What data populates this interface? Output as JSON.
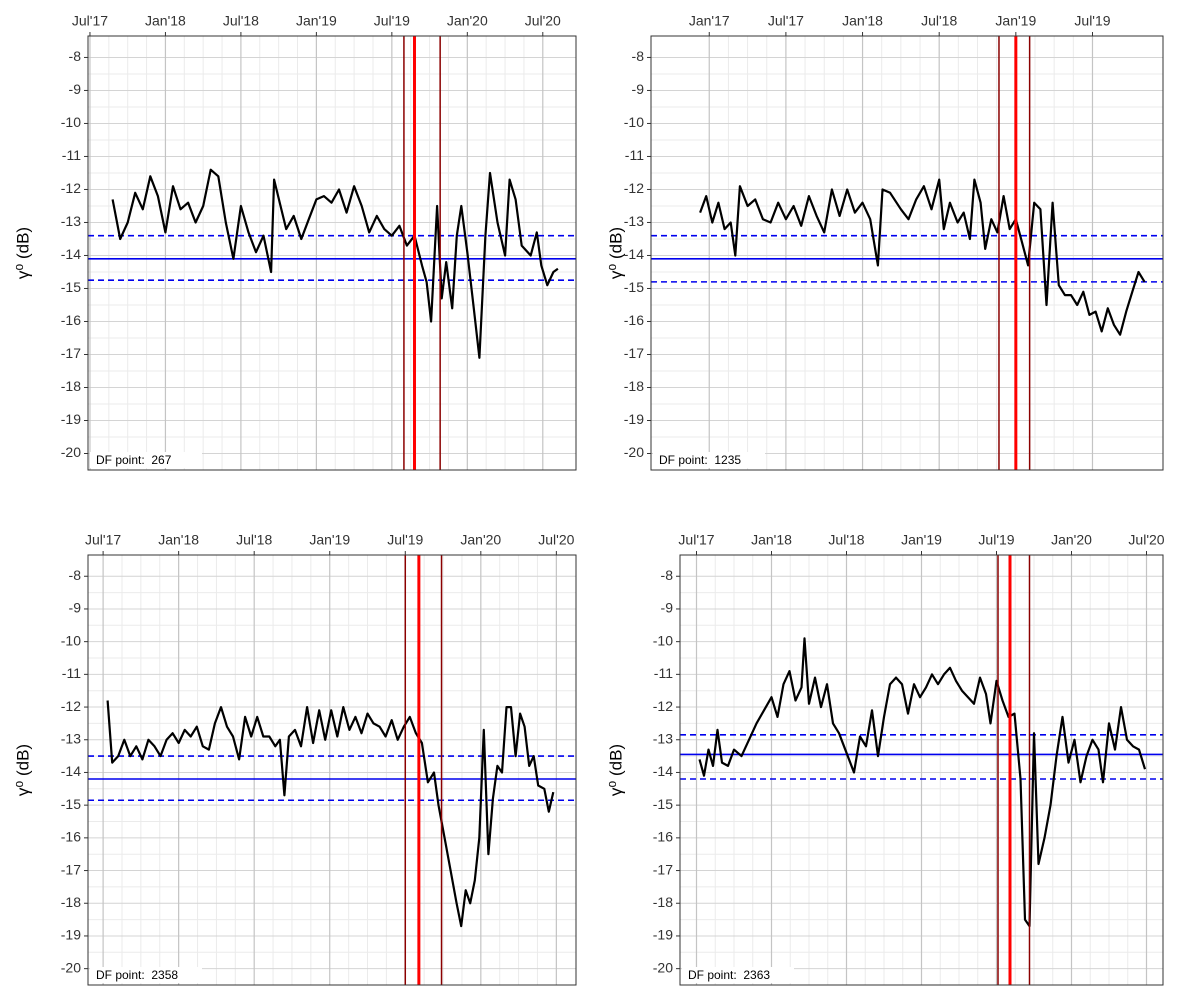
{
  "chart_data": [
    {
      "type": "line",
      "y_label": "γ⁰ (dB)",
      "annotation": "DF point:  267",
      "xlim": [
        2017.487,
        2020.72
      ],
      "ylim": [
        -20.5,
        -7.35
      ],
      "xticks": [
        {
          "value": 2017.5,
          "label": "Jul'17"
        },
        {
          "value": 2018.0,
          "label": "Jan'18"
        },
        {
          "value": 2018.5,
          "label": "Jul'18"
        },
        {
          "value": 2019.0,
          "label": "Jan'19"
        },
        {
          "value": 2019.5,
          "label": "Jul'19"
        },
        {
          "value": 2020.0,
          "label": "Jan'20"
        },
        {
          "value": 2020.5,
          "label": "Jul'20"
        }
      ],
      "yticks": [
        -8,
        -9,
        -10,
        -11,
        -12,
        -13,
        -14,
        -15,
        -16,
        -17,
        -18,
        -19,
        -20
      ],
      "grid": true,
      "hlines": [
        {
          "value": -14.1,
          "style": "solid",
          "color": "#0000ee"
        },
        {
          "value": -13.4,
          "style": "dashed",
          "color": "#0000ee"
        },
        {
          "value": -14.75,
          "style": "dashed",
          "color": "#0000ee"
        }
      ],
      "vlines": [
        {
          "value": 2019.58,
          "weight": "normal",
          "color": "#8b0000"
        },
        {
          "value": 2019.65,
          "weight": "bold",
          "color": "#ff0000"
        },
        {
          "value": 2019.82,
          "weight": "normal",
          "color": "#8b0000"
        }
      ],
      "color": "#000000",
      "x": [
        2017.65,
        2017.7,
        2017.75,
        2017.8,
        2017.85,
        2017.9,
        2017.95,
        2018.0,
        2018.05,
        2018.1,
        2018.15,
        2018.2,
        2018.25,
        2018.3,
        2018.35,
        2018.4,
        2018.45,
        2018.5,
        2018.55,
        2018.6,
        2018.65,
        2018.7,
        2018.72,
        2018.8,
        2018.85,
        2018.9,
        2018.95,
        2019.0,
        2019.05,
        2019.1,
        2019.15,
        2019.2,
        2019.25,
        2019.3,
        2019.35,
        2019.4,
        2019.45,
        2019.5,
        2019.55,
        2019.6,
        2019.65,
        2019.7,
        2019.73,
        2019.76,
        2019.8,
        2019.83,
        2019.86,
        2019.9,
        2019.93,
        2019.96,
        2020.0,
        2020.04,
        2020.08,
        2020.12,
        2020.15,
        2020.2,
        2020.25,
        2020.28,
        2020.32,
        2020.36,
        2020.42,
        2020.46,
        2020.49,
        2020.53,
        2020.57,
        2020.6
      ],
      "values": [
        -12.3,
        -13.5,
        -13.0,
        -12.1,
        -12.6,
        -11.6,
        -12.2,
        -13.3,
        -11.9,
        -12.6,
        -12.4,
        -13.0,
        -12.5,
        -11.4,
        -11.6,
        -13.0,
        -14.1,
        -12.5,
        -13.3,
        -13.9,
        -13.4,
        -14.5,
        -11.7,
        -13.2,
        -12.8,
        -13.5,
        -12.9,
        -12.3,
        -12.2,
        -12.4,
        -12.0,
        -12.7,
        -11.9,
        -12.5,
        -13.3,
        -12.8,
        -13.2,
        -13.4,
        -13.1,
        -13.7,
        -13.4,
        -14.3,
        -14.8,
        -16.0,
        -12.5,
        -15.3,
        -14.2,
        -15.6,
        -13.4,
        -12.5,
        -13.9,
        -15.5,
        -17.1,
        -13.4,
        -11.5,
        -13.0,
        -14.0,
        -11.7,
        -12.3,
        -13.7,
        -14.0,
        -13.3,
        -14.3,
        -14.9,
        -14.5,
        -14.4
      ]
    },
    {
      "type": "line",
      "y_label": "γ⁰ (dB)",
      "annotation": "DF point:  1235",
      "xlim": [
        2016.62,
        2019.96
      ],
      "ylim": [
        -20.5,
        -7.35
      ],
      "xticks": [
        {
          "value": 2017.0,
          "label": "Jan'17"
        },
        {
          "value": 2017.5,
          "label": "Jul'17"
        },
        {
          "value": 2018.0,
          "label": "Jan'18"
        },
        {
          "value": 2018.5,
          "label": "Jul'18"
        },
        {
          "value": 2019.0,
          "label": "Jan'19"
        },
        {
          "value": 2019.5,
          "label": "Jul'19"
        }
      ],
      "yticks": [
        -8,
        -9,
        -10,
        -11,
        -12,
        -13,
        -14,
        -15,
        -16,
        -17,
        -18,
        -19,
        -20
      ],
      "grid": true,
      "hlines": [
        {
          "value": -14.1,
          "style": "solid",
          "color": "#0000ee"
        },
        {
          "value": -13.4,
          "style": "dashed",
          "color": "#0000ee"
        },
        {
          "value": -14.8,
          "style": "dashed",
          "color": "#0000ee"
        }
      ],
      "vlines": [
        {
          "value": 2018.89,
          "weight": "normal",
          "color": "#8b0000"
        },
        {
          "value": 2019.0,
          "weight": "bold",
          "color": "#ff0000"
        },
        {
          "value": 2019.09,
          "weight": "normal",
          "color": "#8b0000"
        }
      ],
      "color": "#000000",
      "x": [
        2016.94,
        2016.98,
        2017.02,
        2017.06,
        2017.1,
        2017.14,
        2017.17,
        2017.2,
        2017.25,
        2017.3,
        2017.35,
        2017.4,
        2017.45,
        2017.5,
        2017.55,
        2017.6,
        2017.65,
        2017.7,
        2017.75,
        2017.8,
        2017.85,
        2017.9,
        2017.95,
        2018.0,
        2018.05,
        2018.1,
        2018.13,
        2018.18,
        2018.25,
        2018.3,
        2018.35,
        2018.4,
        2018.45,
        2018.5,
        2018.53,
        2018.57,
        2018.62,
        2018.66,
        2018.7,
        2018.73,
        2018.77,
        2018.8,
        2018.84,
        2018.88,
        2018.92,
        2018.96,
        2019.0,
        2019.04,
        2019.08,
        2019.12,
        2019.16,
        2019.2,
        2019.24,
        2019.28,
        2019.32,
        2019.36,
        2019.4,
        2019.44,
        2019.48,
        2019.52,
        2019.56,
        2019.6,
        2019.64,
        2019.68,
        2019.72,
        2019.76,
        2019.8,
        2019.84
      ],
      "values": [
        -12.7,
        -12.2,
        -13.0,
        -12.4,
        -13.2,
        -13.0,
        -14.0,
        -11.9,
        -12.5,
        -12.3,
        -12.9,
        -13.0,
        -12.4,
        -12.9,
        -12.5,
        -13.1,
        -12.2,
        -12.8,
        -13.3,
        -12.0,
        -12.8,
        -12.0,
        -12.7,
        -12.4,
        -12.9,
        -14.3,
        -12.0,
        -12.1,
        -12.6,
        -12.9,
        -12.3,
        -11.9,
        -12.6,
        -11.7,
        -13.2,
        -12.4,
        -13.0,
        -12.7,
        -13.5,
        -11.7,
        -12.4,
        -13.8,
        -12.9,
        -13.3,
        -12.2,
        -13.2,
        -12.9,
        -13.6,
        -14.3,
        -12.4,
        -12.6,
        -15.5,
        -12.4,
        -14.9,
        -15.2,
        -15.2,
        -15.5,
        -15.1,
        -15.8,
        -15.7,
        -16.3,
        -15.6,
        -16.1,
        -16.4,
        -15.7,
        -15.1,
        -14.5,
        -14.8
      ]
    },
    {
      "type": "line",
      "y_label": "γ⁰ (dB)",
      "annotation": "DF point:  2358",
      "xlim": [
        2017.4,
        2020.63
      ],
      "ylim": [
        -20.5,
        -7.35
      ],
      "xticks": [
        {
          "value": 2017.5,
          "label": "Jul'17"
        },
        {
          "value": 2018.0,
          "label": "Jan'18"
        },
        {
          "value": 2018.5,
          "label": "Jul'18"
        },
        {
          "value": 2019.0,
          "label": "Jan'19"
        },
        {
          "value": 2019.5,
          "label": "Jul'19"
        },
        {
          "value": 2020.0,
          "label": "Jan'20"
        },
        {
          "value": 2020.5,
          "label": "Jul'20"
        }
      ],
      "yticks": [
        -8,
        -9,
        -10,
        -11,
        -12,
        -13,
        -14,
        -15,
        -16,
        -17,
        -18,
        -19,
        -20
      ],
      "grid": true,
      "hlines": [
        {
          "value": -14.2,
          "style": "solid",
          "color": "#0000ee"
        },
        {
          "value": -13.5,
          "style": "dashed",
          "color": "#0000ee"
        },
        {
          "value": -14.85,
          "style": "dashed",
          "color": "#0000ee"
        }
      ],
      "vlines": [
        {
          "value": 2019.5,
          "weight": "normal",
          "color": "#8b0000"
        },
        {
          "value": 2019.59,
          "weight": "bold",
          "color": "#ff0000"
        },
        {
          "value": 2019.74,
          "weight": "normal",
          "color": "#8b0000"
        }
      ],
      "color": "#000000",
      "x": [
        2017.53,
        2017.56,
        2017.6,
        2017.64,
        2017.68,
        2017.72,
        2017.76,
        2017.8,
        2017.84,
        2017.88,
        2017.92,
        2017.96,
        2018.0,
        2018.04,
        2018.08,
        2018.12,
        2018.16,
        2018.2,
        2018.24,
        2018.28,
        2018.32,
        2018.36,
        2018.4,
        2018.44,
        2018.48,
        2018.52,
        2018.56,
        2018.6,
        2018.64,
        2018.67,
        2018.7,
        2018.73,
        2018.77,
        2018.81,
        2018.85,
        2018.89,
        2018.93,
        2018.97,
        2019.01,
        2019.05,
        2019.09,
        2019.13,
        2019.17,
        2019.21,
        2019.25,
        2019.29,
        2019.33,
        2019.37,
        2019.41,
        2019.45,
        2019.49,
        2019.53,
        2019.57,
        2019.61,
        2019.65,
        2019.69,
        2019.72,
        2019.76,
        2019.8,
        2019.84,
        2019.87,
        2019.9,
        2019.93,
        2019.96,
        2019.99,
        2020.02,
        2020.05,
        2020.08,
        2020.11,
        2020.14,
        2020.17,
        2020.2,
        2020.23,
        2020.26,
        2020.29,
        2020.32,
        2020.35,
        2020.38,
        2020.42,
        2020.45,
        2020.48
      ],
      "values": [
        -11.8,
        -13.7,
        -13.5,
        -13.0,
        -13.5,
        -13.2,
        -13.6,
        -13.0,
        -13.2,
        -13.5,
        -13.0,
        -12.8,
        -13.1,
        -12.7,
        -12.9,
        -12.6,
        -13.2,
        -13.3,
        -12.5,
        -12.0,
        -12.6,
        -12.9,
        -13.6,
        -12.3,
        -12.9,
        -12.3,
        -12.9,
        -12.9,
        -13.2,
        -13.0,
        -14.7,
        -12.9,
        -12.7,
        -13.2,
        -12.0,
        -13.1,
        -12.1,
        -13.0,
        -12.1,
        -12.9,
        -12.0,
        -12.7,
        -12.3,
        -12.8,
        -12.2,
        -12.5,
        -12.6,
        -12.9,
        -12.4,
        -13.0,
        -12.6,
        -12.3,
        -12.8,
        -13.1,
        -14.3,
        -14.0,
        -15.0,
        -16.0,
        -17.0,
        -18.0,
        -18.7,
        -17.6,
        -18.0,
        -17.3,
        -16.0,
        -12.7,
        -16.5,
        -14.8,
        -13.8,
        -14.0,
        -12.0,
        -12.0,
        -13.5,
        -12.2,
        -12.6,
        -13.8,
        -13.5,
        -14.4,
        -14.5,
        -15.2,
        -14.6
      ]
    },
    {
      "type": "line",
      "y_label": "γ⁰ (dB)",
      "annotation": "DF point:  2363",
      "xlim": [
        2017.39,
        2020.61
      ],
      "ylim": [
        -20.5,
        -7.35
      ],
      "xticks": [
        {
          "value": 2017.5,
          "label": "Jul'17"
        },
        {
          "value": 2018.0,
          "label": "Jan'18"
        },
        {
          "value": 2018.5,
          "label": "Jul'18"
        },
        {
          "value": 2019.0,
          "label": "Jan'19"
        },
        {
          "value": 2019.5,
          "label": "Jul'19"
        },
        {
          "value": 2020.0,
          "label": "Jan'20"
        },
        {
          "value": 2020.5,
          "label": "Jul'20"
        }
      ],
      "yticks": [
        -8,
        -9,
        -10,
        -11,
        -12,
        -13,
        -14,
        -15,
        -16,
        -17,
        -18,
        -19,
        -20
      ],
      "grid": true,
      "hlines": [
        {
          "value": -13.45,
          "style": "solid",
          "color": "#0000ee"
        },
        {
          "value": -12.85,
          "style": "dashed",
          "color": "#0000ee"
        },
        {
          "value": -14.2,
          "style": "dashed",
          "color": "#0000ee"
        }
      ],
      "vlines": [
        {
          "value": 2019.51,
          "weight": "normal",
          "color": "#8b0000"
        },
        {
          "value": 2019.59,
          "weight": "bold",
          "color": "#ff0000"
        },
        {
          "value": 2019.72,
          "weight": "normal",
          "color": "#8b0000"
        }
      ],
      "color": "#000000",
      "x": [
        2017.52,
        2017.55,
        2017.58,
        2017.61,
        2017.64,
        2017.67,
        2017.71,
        2017.75,
        2017.8,
        2017.85,
        2017.9,
        2017.95,
        2018.0,
        2018.04,
        2018.08,
        2018.12,
        2018.16,
        2018.2,
        2018.22,
        2018.25,
        2018.29,
        2018.33,
        2018.37,
        2018.41,
        2018.45,
        2018.5,
        2018.55,
        2018.59,
        2018.63,
        2018.67,
        2018.71,
        2018.75,
        2018.79,
        2018.83,
        2018.87,
        2018.91,
        2018.95,
        2018.99,
        2019.03,
        2019.07,
        2019.11,
        2019.15,
        2019.19,
        2019.23,
        2019.27,
        2019.31,
        2019.35,
        2019.39,
        2019.43,
        2019.46,
        2019.5,
        2019.54,
        2019.58,
        2019.62,
        2019.66,
        2019.69,
        2019.72,
        2019.75,
        2019.78,
        2019.82,
        2019.86,
        2019.9,
        2019.94,
        2019.98,
        2020.02,
        2020.06,
        2020.1,
        2020.14,
        2020.18,
        2020.21,
        2020.25,
        2020.29,
        2020.33,
        2020.37,
        2020.41,
        2020.45,
        2020.49
      ],
      "values": [
        -13.6,
        -14.1,
        -13.3,
        -13.8,
        -12.7,
        -13.7,
        -13.8,
        -13.3,
        -13.5,
        -13.0,
        -12.5,
        -12.1,
        -11.7,
        -12.3,
        -11.3,
        -10.9,
        -11.8,
        -11.4,
        -9.9,
        -11.9,
        -11.1,
        -12.0,
        -11.3,
        -12.5,
        -12.8,
        -13.4,
        -14.0,
        -12.9,
        -13.2,
        -12.1,
        -13.5,
        -12.3,
        -11.3,
        -11.1,
        -11.3,
        -12.2,
        -11.3,
        -11.7,
        -11.4,
        -11.0,
        -11.3,
        -11.0,
        -10.8,
        -11.2,
        -11.5,
        -11.7,
        -11.9,
        -11.1,
        -11.6,
        -12.5,
        -11.2,
        -11.8,
        -12.3,
        -12.2,
        -14.2,
        -18.5,
        -18.7,
        -12.8,
        -16.8,
        -16.0,
        -15.0,
        -13.5,
        -12.3,
        -13.7,
        -13.0,
        -14.3,
        -13.5,
        -13.0,
        -13.3,
        -14.3,
        -12.5,
        -13.3,
        -12.0,
        -13.0,
        -13.2,
        -13.3,
        -13.9
      ]
    }
  ]
}
